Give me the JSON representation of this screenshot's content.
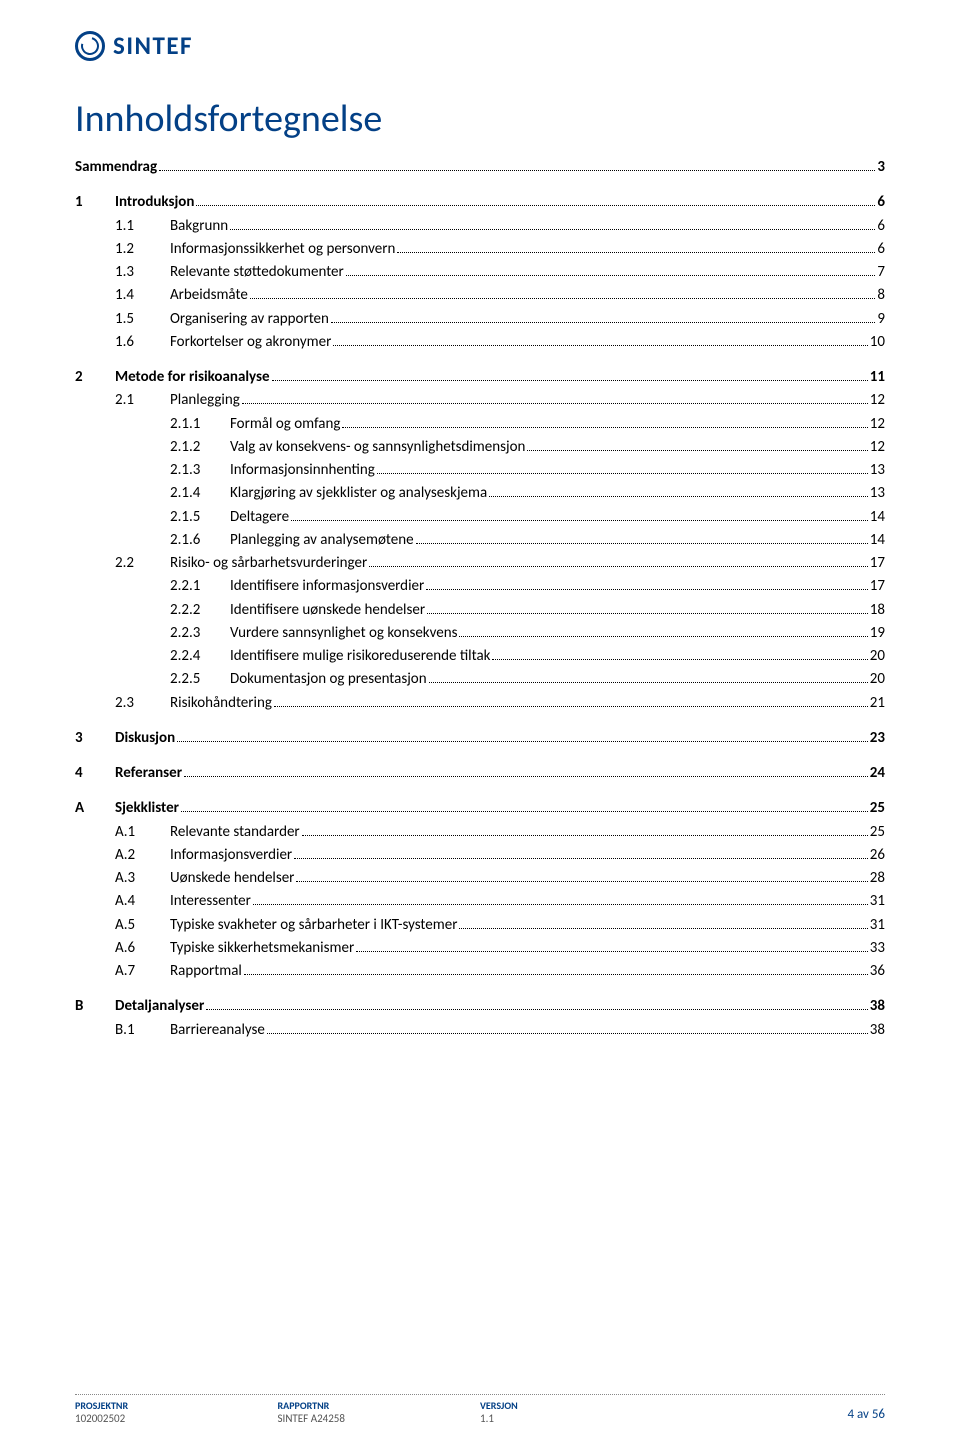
{
  "logo_text": "SINTEF",
  "title": "Innholdsfortegnelse",
  "toc": [
    {
      "level": 1,
      "num": "",
      "label": "Sammendrag",
      "page": "3",
      "bold": true
    },
    {
      "level": 1,
      "num": "1",
      "label": "Introduksjon",
      "page": "6",
      "bold": true
    },
    {
      "level": 2,
      "num": "1.1",
      "label": "Bakgrunn",
      "page": "6"
    },
    {
      "level": 2,
      "num": "1.2",
      "label": "Informasjonssikkerhet og personvern",
      "page": "6"
    },
    {
      "level": 2,
      "num": "1.3",
      "label": "Relevante støttedokumenter",
      "page": "7"
    },
    {
      "level": 2,
      "num": "1.4",
      "label": "Arbeidsmåte",
      "page": "8"
    },
    {
      "level": 2,
      "num": "1.5",
      "label": "Organisering av rapporten",
      "page": "9"
    },
    {
      "level": 2,
      "num": "1.6",
      "label": "Forkortelser og akronymer",
      "page": "10"
    },
    {
      "level": 1,
      "num": "2",
      "label": "Metode for risikoanalyse",
      "page": "11",
      "bold": true
    },
    {
      "level": 2,
      "num": "2.1",
      "label": "Planlegging",
      "page": "12"
    },
    {
      "level": 3,
      "num": "2.1.1",
      "label": "Formål og omfang",
      "page": "12"
    },
    {
      "level": 3,
      "num": "2.1.2",
      "label": "Valg av konsekvens- og sannsynlighetsdimensjon",
      "page": "12"
    },
    {
      "level": 3,
      "num": "2.1.3",
      "label": "Informasjonsinnhenting",
      "page": "13"
    },
    {
      "level": 3,
      "num": "2.1.4",
      "label": "Klargjøring av sjekklister og analyseskjema",
      "page": "13"
    },
    {
      "level": 3,
      "num": "2.1.5",
      "label": "Deltagere",
      "page": "14"
    },
    {
      "level": 3,
      "num": "2.1.6",
      "label": "Planlegging av analysemøtene",
      "page": "14"
    },
    {
      "level": 2,
      "num": "2.2",
      "label": "Risiko- og sårbarhetsvurderinger",
      "page": "17"
    },
    {
      "level": 3,
      "num": "2.2.1",
      "label": "Identifisere informasjonsverdier",
      "page": "17"
    },
    {
      "level": 3,
      "num": "2.2.2",
      "label": "Identifisere uønskede hendelser",
      "page": "18"
    },
    {
      "level": 3,
      "num": "2.2.3",
      "label": "Vurdere sannsynlighet og konsekvens",
      "page": "19"
    },
    {
      "level": 3,
      "num": "2.2.4",
      "label": "Identifisere mulige risikoreduserende tiltak",
      "page": "20"
    },
    {
      "level": 3,
      "num": "2.2.5",
      "label": "Dokumentasjon og presentasjon",
      "page": "20"
    },
    {
      "level": 2,
      "num": "2.3",
      "label": "Risikohåndtering",
      "page": "21"
    },
    {
      "level": 1,
      "num": "3",
      "label": "Diskusjon",
      "page": "23",
      "bold": true
    },
    {
      "level": 1,
      "num": "4",
      "label": "Referanser",
      "page": "24",
      "bold": true
    },
    {
      "level": 1,
      "num": "A",
      "label": "Sjekklister",
      "page": "25",
      "bold": true
    },
    {
      "level": 2,
      "num": "A.1",
      "label": "Relevante standarder",
      "page": "25"
    },
    {
      "level": 2,
      "num": "A.2",
      "label": "Informasjonsverdier",
      "page": "26"
    },
    {
      "level": 2,
      "num": "A.3",
      "label": "Uønskede hendelser",
      "page": "28"
    },
    {
      "level": 2,
      "num": "A.4",
      "label": "Interessenter",
      "page": "31"
    },
    {
      "level": 2,
      "num": "A.5",
      "label": "Typiske svakheter og sårbarheter i IKT-systemer",
      "page": "31"
    },
    {
      "level": 2,
      "num": "A.6",
      "label": "Typiske sikkerhetsmekanismer",
      "page": "33"
    },
    {
      "level": 2,
      "num": "A.7",
      "label": "Rapportmal",
      "page": "36"
    },
    {
      "level": 1,
      "num": "B",
      "label": "Detaljanalyser",
      "page": "38",
      "bold": true
    },
    {
      "level": 2,
      "num": "B.1",
      "label": "Barriereanalyse",
      "page": "38"
    }
  ],
  "footer": {
    "col1_label": "PROSJEKTNR",
    "col1_value": "102002502",
    "col2_label": "RAPPORTNR",
    "col2_value": "SINTEF A24258",
    "col3_label": "VERSJON",
    "col3_value": "1.1",
    "page_info": "4 av 56"
  },
  "colors": {
    "brand": "#034086",
    "text": "#000000",
    "footer_text": "#555555"
  }
}
